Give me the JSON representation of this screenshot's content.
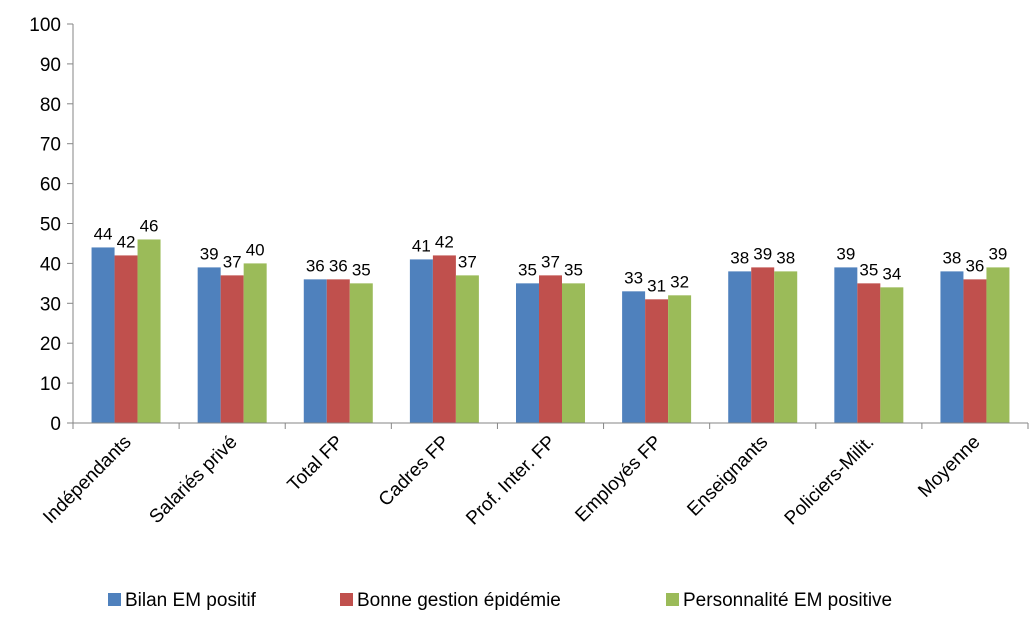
{
  "chart_data": {
    "type": "bar",
    "title": "",
    "xlabel": "",
    "ylabel": "",
    "ylim": [
      0,
      100
    ],
    "yticks": [
      0,
      10,
      20,
      30,
      40,
      50,
      60,
      70,
      80,
      90,
      100
    ],
    "grid": false,
    "legend_position": "bottom",
    "categories": [
      "Indépendants",
      "Salariés privé",
      "Total FP",
      "Cadres FP",
      "Prof. Inter. FP",
      "Employés FP",
      "Enseignants",
      "Policiers-Milit.",
      "Moyenne"
    ],
    "series": [
      {
        "name": "Bilan EM positif",
        "color": "#4F81BD",
        "values": [
          44,
          39,
          36,
          41,
          35,
          33,
          38,
          39,
          38
        ]
      },
      {
        "name": "Bonne gestion épidémie",
        "color": "#C0504D",
        "values": [
          42,
          37,
          36,
          42,
          37,
          31,
          39,
          35,
          36
        ]
      },
      {
        "name": "Personnalité EM positive",
        "color": "#9BBB59",
        "values": [
          46,
          40,
          35,
          37,
          35,
          32,
          38,
          34,
          39
        ]
      }
    ]
  }
}
